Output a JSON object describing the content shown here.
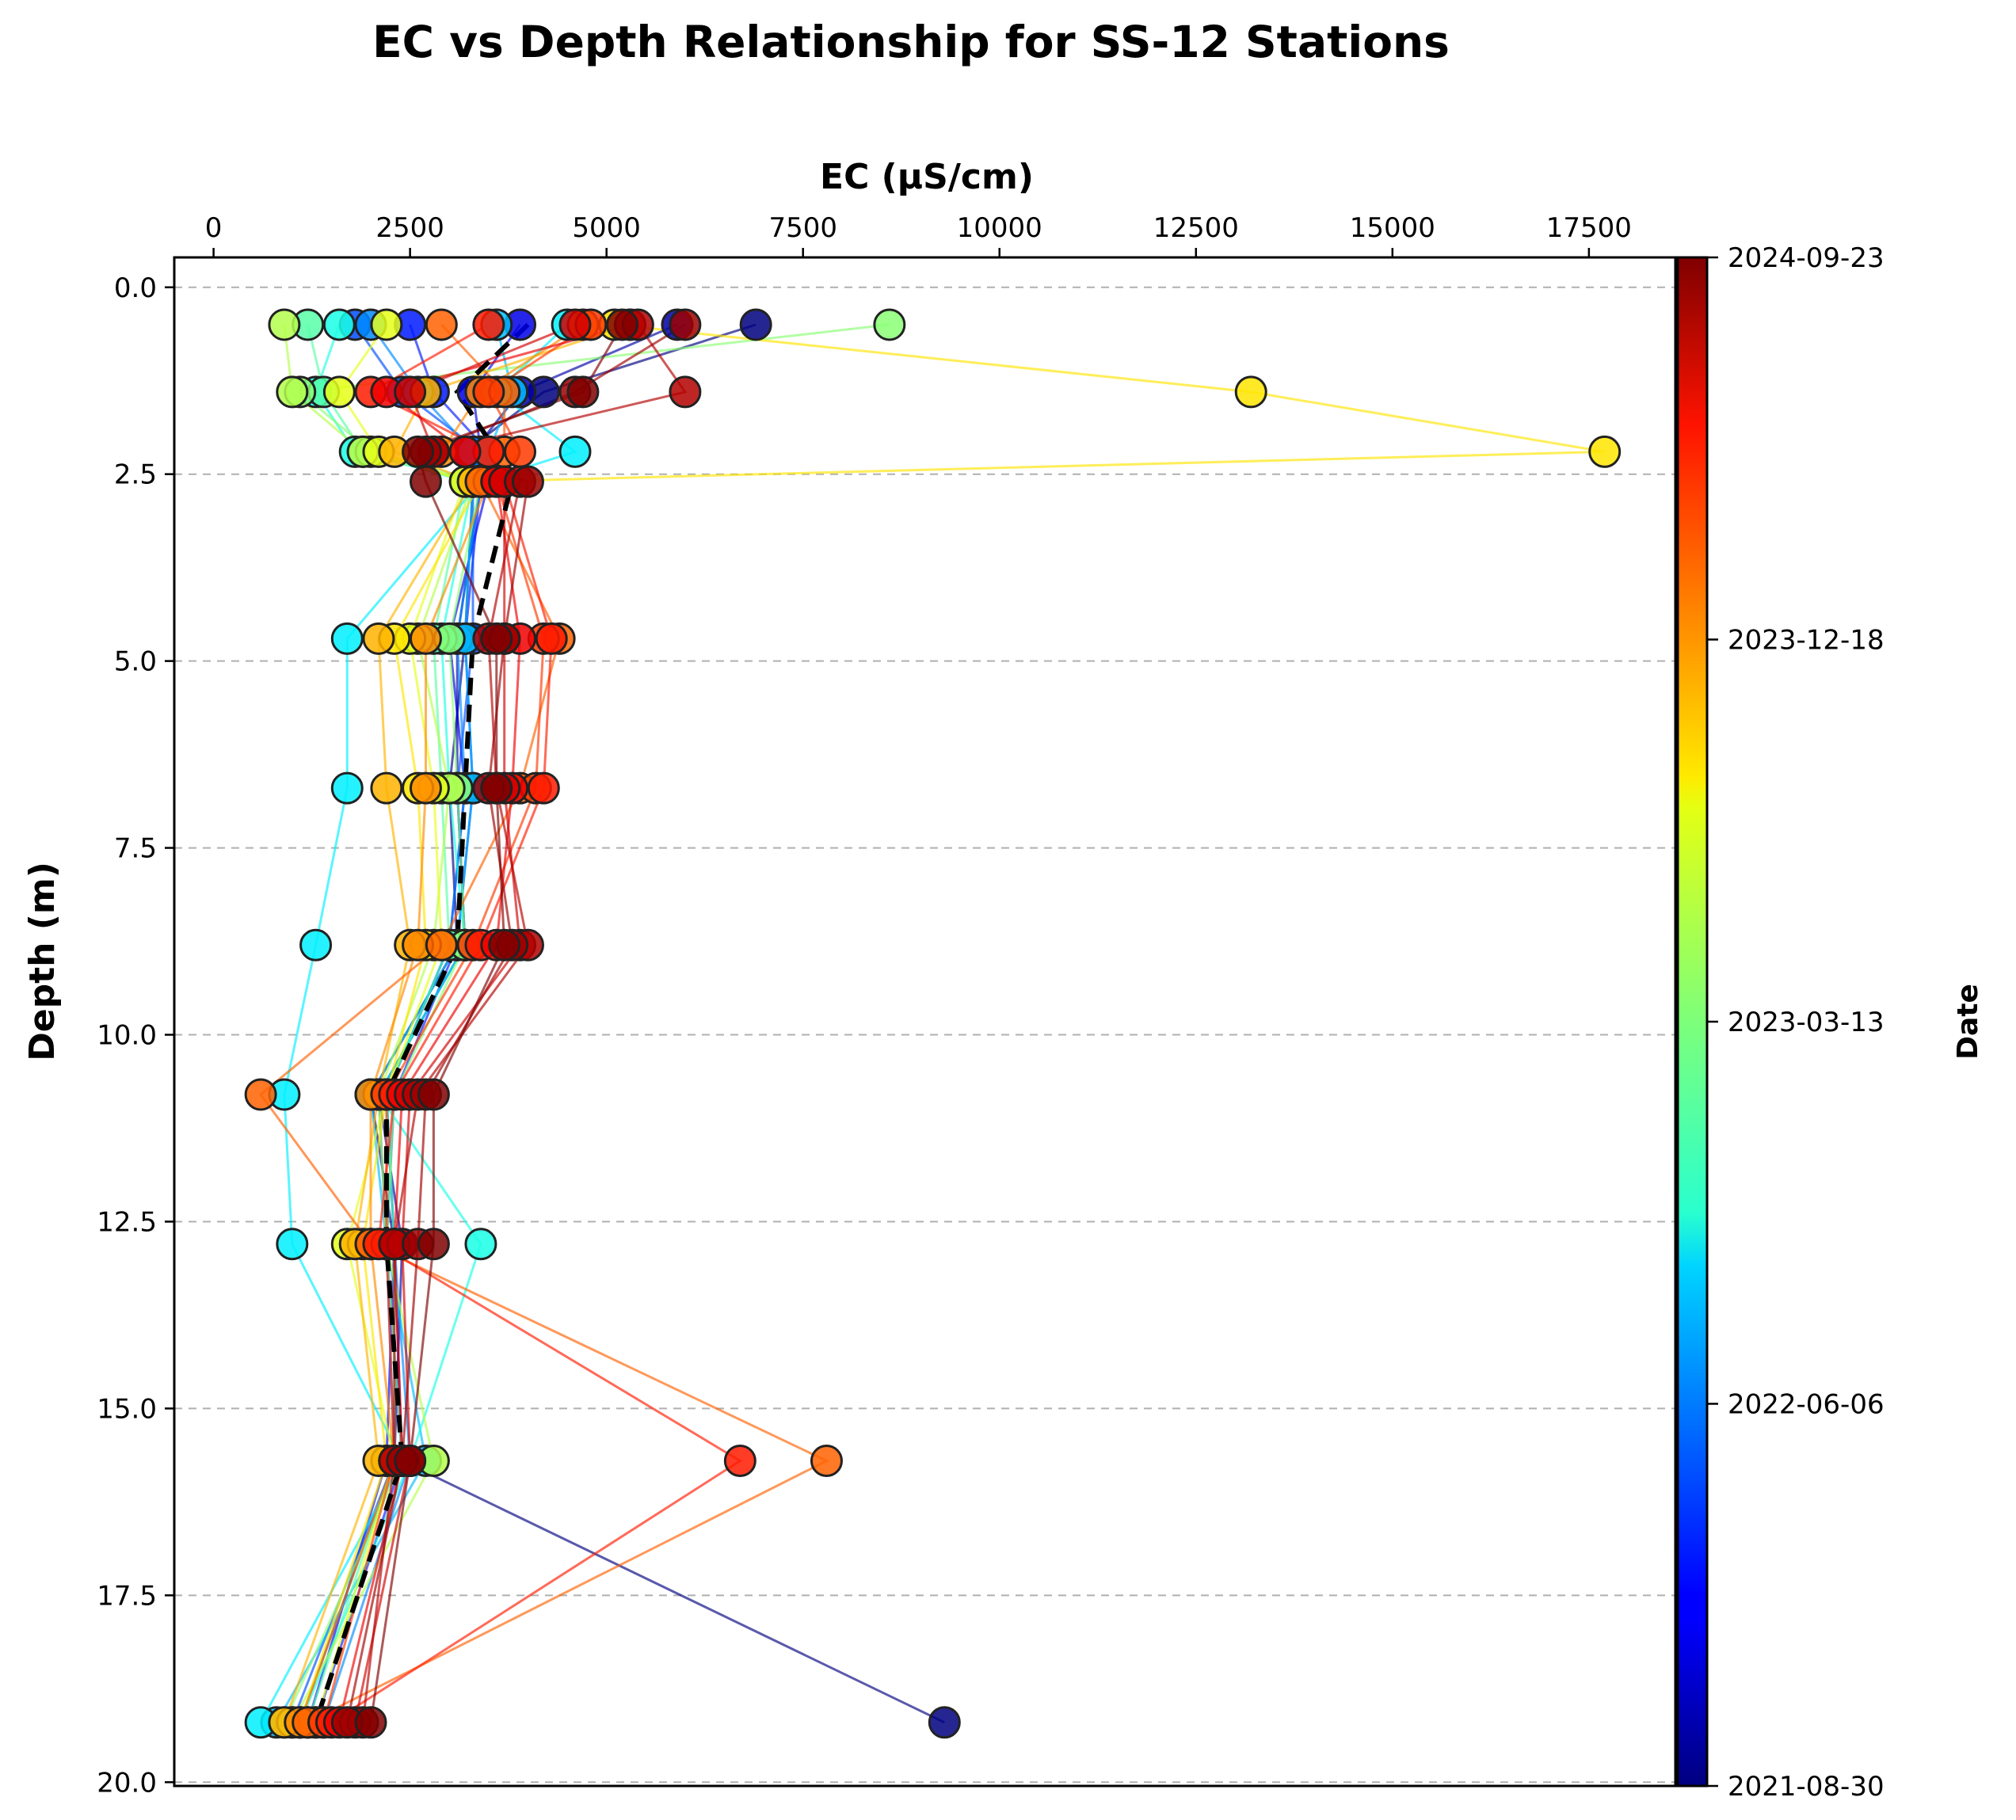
{
  "chart_data": {
    "type": "scatter",
    "title": "EC vs Depth Relationship for SS-12 Stations",
    "xlabel": "EC (µS/cm)",
    "ylabel": "Depth (m)",
    "x_axis_position": "top",
    "y_axis_inverted": true,
    "xlim": [
      -500,
      18600
    ],
    "ylim": [
      20.05,
      -0.4
    ],
    "xticks": [
      "0",
      "2500",
      "5000",
      "7500",
      "10000",
      "12500",
      "15000",
      "17500"
    ],
    "yticks": [
      "0.0",
      "2.5",
      "5.0",
      "7.5",
      "10.0",
      "12.5",
      "15.0",
      "17.5",
      "20.0"
    ],
    "grid": "horizontal dashed",
    "colormap": "jet",
    "colorbar": {
      "label": "Date",
      "ticks": [
        "2024-09-23",
        "2023-12-18",
        "2023-03-13",
        "2022-06-06",
        "2021-08-30"
      ]
    },
    "depths": [
      0.5,
      1.4,
      2.2,
      2.6,
      4.7,
      6.7,
      8.8,
      10.8,
      12.8,
      15.7,
      19.2
    ],
    "mean_profile": {
      "style": "black dashed",
      "depths": [
        0.5,
        1.4,
        2.2,
        2.6,
        4.7,
        6.7,
        8.8,
        10.8,
        12.8,
        15.7,
        19.2
      ],
      "ec": [
        4000,
        3100,
        3600,
        3800,
        3300,
        3200,
        3100,
        2200,
        2200,
        2400,
        1300
      ]
    },
    "profiles": [
      {
        "date_frac": 0.0,
        "ec": [
          6900,
          4200,
          3200,
          3300,
          3200,
          3000,
          3100,
          2000,
          2300,
          2400,
          9300
        ]
      },
      {
        "date_frac": 0.04,
        "ec": [
          5900,
          3900,
          3300,
          3400,
          3100,
          3100,
          3200,
          2100,
          2400,
          2300,
          1100
        ]
      },
      {
        "date_frac": 0.1,
        "ec": [
          3900,
          3300,
          3400,
          3500,
          3000,
          3200,
          3000,
          2200,
          2300,
          2200,
          1200
        ]
      },
      {
        "date_frac": 0.15,
        "ec": [
          2500,
          2800,
          3500,
          3400,
          3200,
          3300,
          3100,
          2300,
          2200,
          2400,
          1300
        ]
      },
      {
        "date_frac": 0.2,
        "ec": [
          1800,
          2400,
          3400,
          3300,
          3300,
          3100,
          3200,
          2100,
          2200,
          2300,
          1000
        ]
      },
      {
        "date_frac": 0.26,
        "ec": [
          2000,
          2600,
          3300,
          3400,
          3100,
          3200,
          3000,
          2200,
          2300,
          2500,
          1400
        ]
      },
      {
        "date_frac": 0.31,
        "ec": [
          3600,
          3800,
          3500,
          3300,
          3200,
          3300,
          3100,
          2000,
          2200,
          2700,
          800
        ]
      },
      {
        "date_frac": 0.36,
        "ec": [
          4500,
          3600,
          4600,
          3400,
          1700,
          1700,
          1300,
          900,
          1000,
          2400,
          600
        ]
      },
      {
        "date_frac": 0.4,
        "ec": [
          1600,
          1300,
          1800,
          3300,
          2900,
          3000,
          3200,
          2100,
          3400,
          2500,
          1100
        ]
      },
      {
        "date_frac": 0.46,
        "ec": [
          1200,
          1400,
          1900,
          3200,
          2800,
          2900,
          3000,
          2200,
          2300,
          2300,
          1200
        ]
      },
      {
        "date_frac": 0.51,
        "ec": [
          8600,
          1100,
          2000,
          3400,
          3000,
          3100,
          3200,
          2300,
          2200,
          2400,
          900
        ]
      },
      {
        "date_frac": 0.55,
        "ec": [
          900,
          1000,
          1900,
          3300,
          2600,
          3000,
          2800,
          2100,
          2200,
          2800,
          1000
        ]
      },
      {
        "date_frac": 0.6,
        "ec": [
          2200,
          1600,
          2100,
          3200,
          2500,
          2800,
          2900,
          2200,
          1700,
          2300,
          1300
        ]
      },
      {
        "date_frac": 0.65,
        "ec": [
          5100,
          13200,
          17700,
          3400,
          2300,
          2600,
          2700,
          2200,
          1900,
          2200,
          1100
        ]
      },
      {
        "date_frac": 0.7,
        "ec": [
          5300,
          2700,
          2300,
          3300,
          2100,
          2200,
          2500,
          2100,
          1800,
          2100,
          900
        ]
      },
      {
        "date_frac": 0.74,
        "ec": [
          4700,
          3400,
          2900,
          3500,
          2700,
          2700,
          2600,
          2000,
          2000,
          2300,
          1100
        ]
      },
      {
        "date_frac": 0.78,
        "ec": [
          2900,
          3700,
          3700,
          3400,
          4400,
          3900,
          2900,
          600,
          2000,
          7800,
          1200
        ]
      },
      {
        "date_frac": 0.82,
        "ec": [
          4800,
          3500,
          3900,
          3600,
          4200,
          4100,
          3300,
          2200,
          2200,
          2300,
          1400
        ]
      },
      {
        "date_frac": 0.85,
        "ec": [
          3500,
          2000,
          3500,
          3700,
          4300,
          4200,
          3400,
          2300,
          2100,
          6700,
          1500
        ]
      },
      {
        "date_frac": 0.89,
        "ec": [
          5300,
          2200,
          3200,
          3600,
          3900,
          3800,
          3600,
          2400,
          2300,
          2400,
          1600
        ]
      },
      {
        "date_frac": 0.92,
        "ec": [
          4600,
          2500,
          2800,
          3700,
          3700,
          3700,
          3900,
          2500,
          2400,
          2500,
          1800
        ]
      },
      {
        "date_frac": 0.95,
        "ec": [
          5400,
          6000,
          2800,
          3900,
          3500,
          3600,
          4000,
          2600,
          2300,
          2300,
          1900
        ]
      },
      {
        "date_frac": 0.97,
        "ec": [
          6000,
          4600,
          2700,
          4000,
          3700,
          3500,
          3800,
          2700,
          2600,
          2400,
          1700
        ]
      },
      {
        "date_frac": 1.0,
        "ec": [
          5200,
          4700,
          2600,
          2700,
          3600,
          3600,
          3700,
          2800,
          2800,
          2500,
          2000
        ]
      }
    ]
  }
}
